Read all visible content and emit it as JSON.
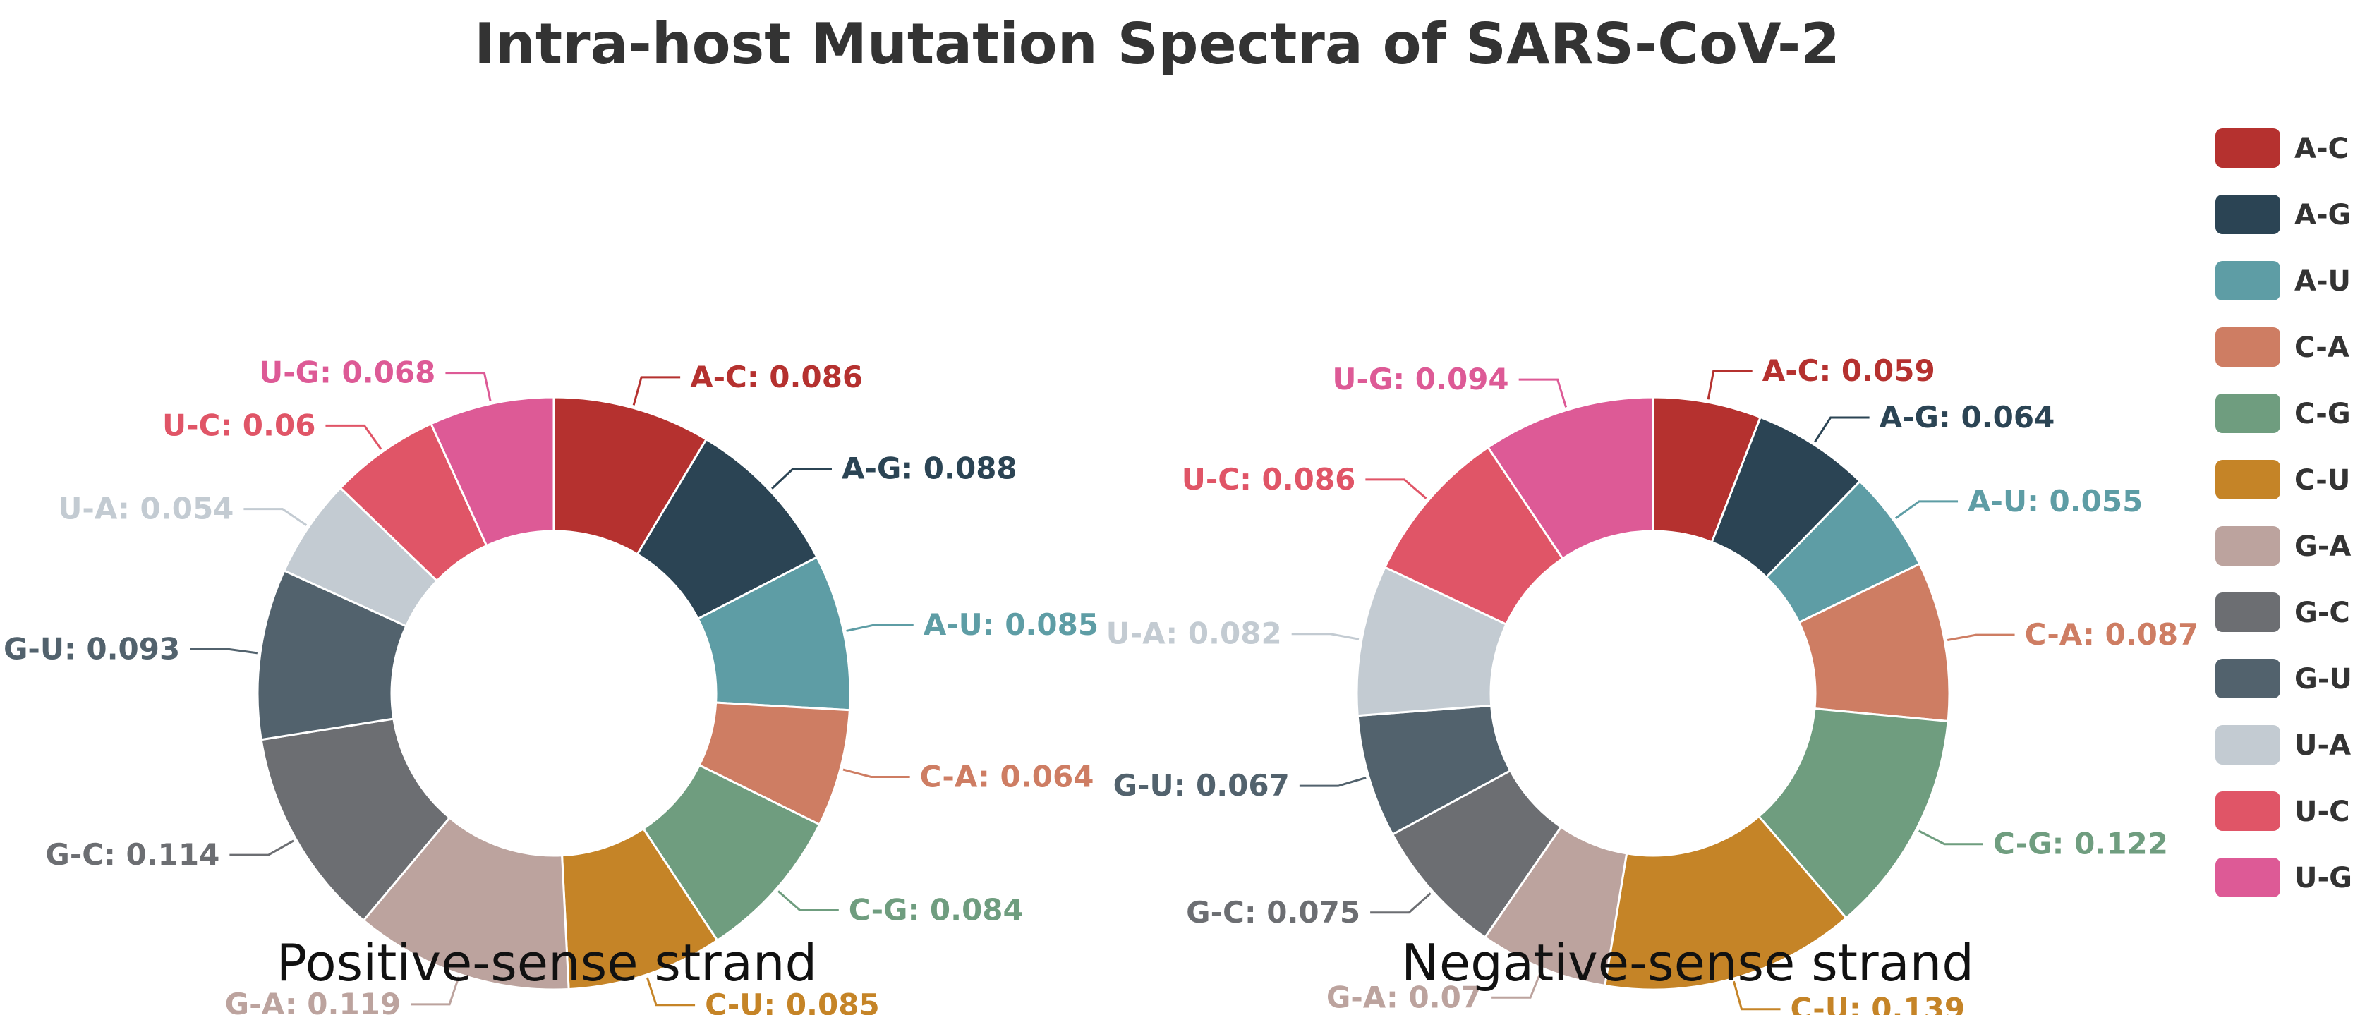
{
  "chart_data": {
    "type": "pie",
    "title": "Intra-host Mutation Spectra of SARS-CoV-2",
    "categories": [
      "A-C",
      "A-G",
      "A-U",
      "C-A",
      "C-G",
      "C-U",
      "G-A",
      "G-C",
      "G-U",
      "U-A",
      "U-C",
      "U-G"
    ],
    "colors": {
      "A-C": "#B5312F",
      "A-G": "#2B4454",
      "A-U": "#5E9DA5",
      "C-A": "#CE7D63",
      "C-G": "#6F9D7F",
      "C-U": "#C58427",
      "G-A": "#BCA39E",
      "G-C": "#6C6E72",
      "G-U": "#52626D",
      "U-A": "#C3CBD2",
      "U-C": "#E05567",
      "U-G": "#DD5A96"
    },
    "series": [
      {
        "name": "Positive-sense strand",
        "labels": [
          "A-C: 0.086",
          "A-G: 0.088",
          "A-U: 0.085",
          "C-A: 0.064",
          "C-G: 0.084",
          "C-U: 0.085",
          "G-A: 0.119",
          "G-C: 0.114",
          "G-U: 0.093",
          "U-A: 0.054",
          "U-C: 0.06",
          "U-G: 0.068"
        ],
        "values": [
          0.086,
          0.088,
          0.085,
          0.064,
          0.084,
          0.085,
          0.119,
          0.114,
          0.093,
          0.054,
          0.06,
          0.068
        ]
      },
      {
        "name": "Negative-sense strand",
        "labels": [
          "A-C: 0.059",
          "A-G: 0.064",
          "A-U: 0.055",
          "C-A: 0.087",
          "C-G: 0.122",
          "C-U: 0.139",
          "G-A: 0.07",
          "G-C: 0.075",
          "G-U: 0.067",
          "U-A: 0.082",
          "U-C: 0.086",
          "U-G: 0.094"
        ],
        "values": [
          0.059,
          0.064,
          0.055,
          0.087,
          0.122,
          0.139,
          0.07,
          0.075,
          0.067,
          0.082,
          0.086,
          0.094
        ]
      }
    ],
    "legend": {
      "position": "right",
      "items": [
        "A-C",
        "A-G",
        "A-U",
        "C-A",
        "C-G",
        "C-U",
        "G-A",
        "G-C",
        "G-U",
        "U-A",
        "U-C",
        "U-G"
      ]
    }
  }
}
